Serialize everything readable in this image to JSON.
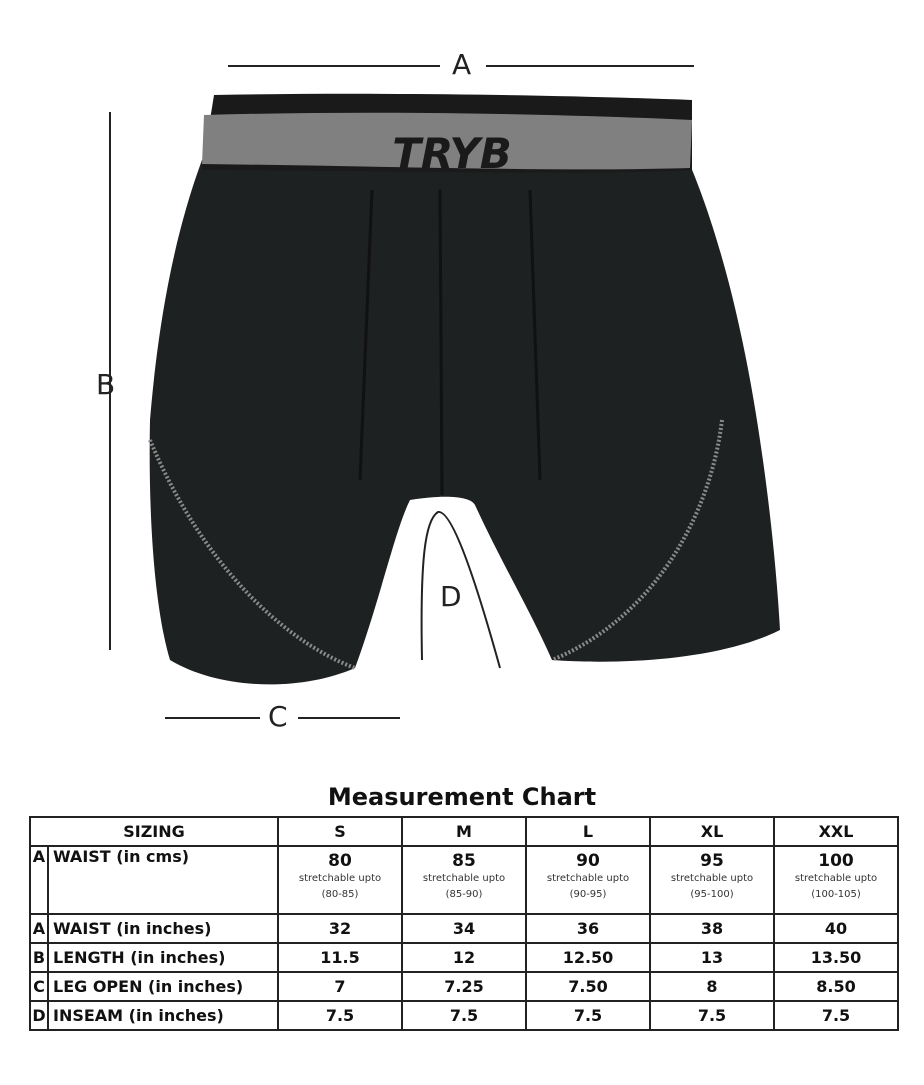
{
  "diagram": {
    "labels": {
      "a": "A",
      "b": "B",
      "c": "C",
      "d": "D"
    },
    "brand_logo": "TRYB",
    "colors": {
      "fabric": "#1e2121",
      "waistband": "#808080",
      "stitch": "#8a8a8a"
    }
  },
  "chart": {
    "title": "Measurement Chart",
    "header": {
      "label": "SIZING",
      "sizes": [
        "S",
        "M",
        "L",
        "XL",
        "XXL"
      ]
    },
    "rows": [
      {
        "letter": "A",
        "label": "WAIST (in cms)",
        "values": [
          {
            "main": "80",
            "note": "stretchable upto",
            "range": "(80-85)"
          },
          {
            "main": "85",
            "note": "stretchable upto",
            "range": "(85-90)"
          },
          {
            "main": "90",
            "note": "stretchable upto",
            "range": "(90-95)"
          },
          {
            "main": "95",
            "note": "stretchable upto",
            "range": "(95-100)"
          },
          {
            "main": "100",
            "note": "stretchable upto",
            "range": "(100-105)"
          }
        ]
      },
      {
        "letter": "A",
        "label": "WAIST (in inches)",
        "values": [
          "32",
          "34",
          "36",
          "38",
          "40"
        ]
      },
      {
        "letter": "B",
        "label": "LENGTH (in inches)",
        "values": [
          "11.5",
          "12",
          "12.50",
          "13",
          "13.50"
        ]
      },
      {
        "letter": "C",
        "label": "LEG OPEN (in inches)",
        "values": [
          "7",
          "7.25",
          "7.50",
          "8",
          "8.50"
        ]
      },
      {
        "letter": "D",
        "label": "INSEAM (in inches)",
        "values": [
          "7.5",
          "7.5",
          "7.5",
          "7.5",
          "7.5"
        ]
      }
    ]
  }
}
